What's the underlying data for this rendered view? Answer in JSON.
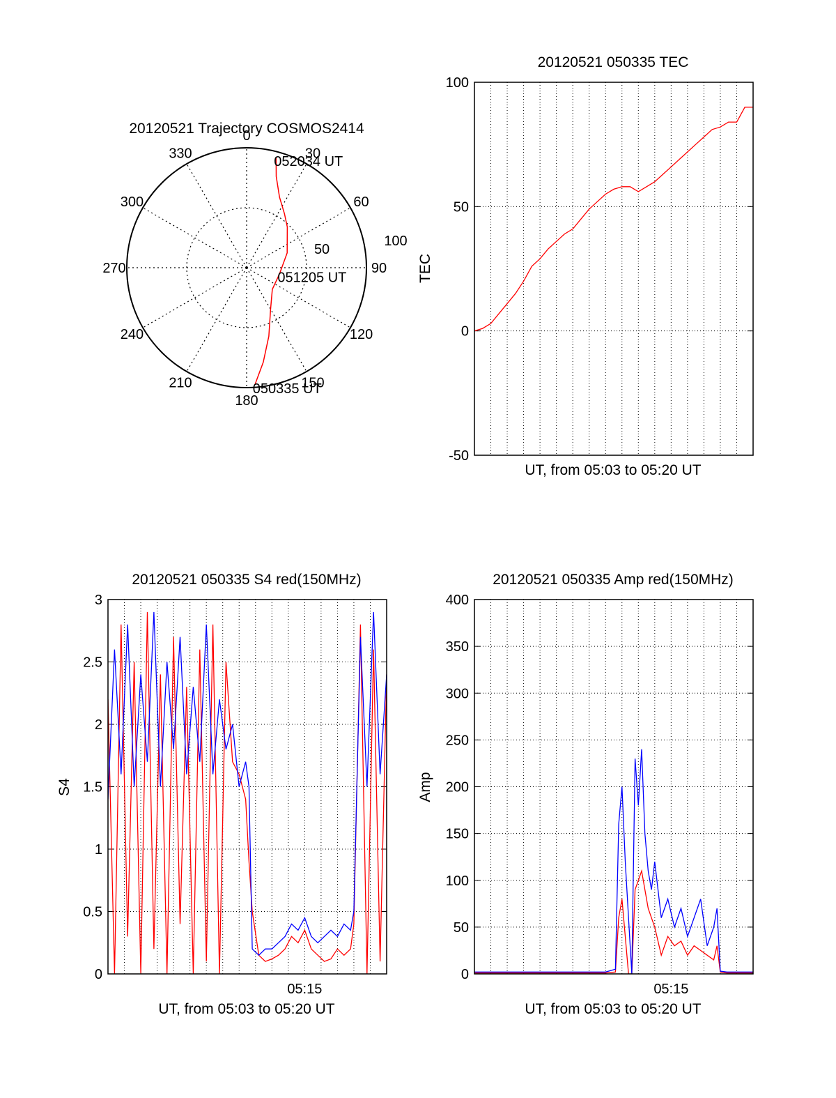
{
  "chart_data": [
    {
      "id": "trajectory",
      "type": "polar",
      "title": "20120521 Trajectory COSMOS2414",
      "angle_ticks": [
        "0",
        "30",
        "60",
        "90",
        "120",
        "150",
        "180",
        "210",
        "240",
        "270",
        "300",
        "330"
      ],
      "radial_range": [
        0,
        100
      ],
      "radial_ticks": [
        "50",
        "100"
      ],
      "grid": true,
      "series": [
        {
          "color": "#ff0000",
          "points": [
            [
              176,
              98
            ],
            [
              170,
              80
            ],
            [
              162,
              60
            ],
            [
              150,
              40
            ],
            [
              130,
              28
            ],
            [
              100,
              28
            ],
            [
              70,
              36
            ],
            [
              45,
              48
            ],
            [
              35,
              55
            ],
            [
              25,
              65
            ],
            [
              18,
              80
            ],
            [
              15,
              95
            ]
          ]
        }
      ],
      "annotations": [
        {
          "text": "052034 UT",
          "angle": 15,
          "radius": 95
        },
        {
          "text": "051205 UT",
          "angle": 100,
          "radius": 28
        },
        {
          "text": "050335 UT",
          "angle": 176,
          "radius": 98
        }
      ]
    },
    {
      "id": "tec",
      "type": "line",
      "title": "20120521 050335 TEC",
      "xlabel": "UT, from 05:03 to 05:20 UT",
      "ylabel": "TEC",
      "xlim": [
        0,
        17
      ],
      "ylim": [
        -50,
        100
      ],
      "yticks": [
        -50,
        0,
        50,
        100
      ],
      "grid": true,
      "series": [
        {
          "color": "#ff0000",
          "x": [
            0,
            0.5,
            1.0,
            1.5,
            2.0,
            2.5,
            3.0,
            3.5,
            4.0,
            4.5,
            5.0,
            5.5,
            6.0,
            6.5,
            7.0,
            7.5,
            8.0,
            8.5,
            9.0,
            9.5,
            10.0,
            10.5,
            11.0,
            11.5,
            12.0,
            12.5,
            13.0,
            13.5,
            14.0,
            14.5,
            15.0,
            15.5,
            16.0,
            16.5,
            17.0
          ],
          "y": [
            0,
            1,
            3,
            7,
            11,
            15,
            20,
            26,
            29,
            33,
            36,
            39,
            41,
            45,
            49,
            52,
            55,
            57,
            58,
            58,
            56,
            58,
            60,
            63,
            66,
            69,
            72,
            75,
            78,
            81,
            82,
            84,
            84,
            90,
            90
          ]
        }
      ]
    },
    {
      "id": "s4",
      "type": "line",
      "title": "20120521 050335 S4 red(150MHz)",
      "xlabel": "UT, from 05:03 to 05:20 UT",
      "ylabel": "S4",
      "xlim": [
        0,
        17
      ],
      "ylim": [
        0,
        3
      ],
      "yticks": [
        0,
        0.5,
        1,
        1.5,
        2,
        2.5,
        3
      ],
      "xtick_labels": [
        {
          "x": 12,
          "label": "05:15"
        }
      ],
      "grid": true,
      "series": [
        {
          "name": "red",
          "color": "#ff0000",
          "x": [
            0,
            0.4,
            0.8,
            1.2,
            1.6,
            2.0,
            2.4,
            2.8,
            3.2,
            3.6,
            4.0,
            4.4,
            4.8,
            5.2,
            5.6,
            6.0,
            6.4,
            6.8,
            7.2,
            7.6,
            8.0,
            8.4,
            8.6,
            8.8,
            9.2,
            9.6,
            10.0,
            10.4,
            10.8,
            11.2,
            11.6,
            12.0,
            12.4,
            12.8,
            13.2,
            13.6,
            14.0,
            14.4,
            14.8,
            15.0,
            15.4,
            15.8,
            16.2,
            16.6,
            17.0
          ],
          "y": [
            2.2,
            0.0,
            2.8,
            0.3,
            2.5,
            0.0,
            2.9,
            0.2,
            2.4,
            0.0,
            2.7,
            0.4,
            2.3,
            0.0,
            2.6,
            0.1,
            2.8,
            0.0,
            2.5,
            1.7,
            1.6,
            1.4,
            0.9,
            0.5,
            0.15,
            0.1,
            0.12,
            0.15,
            0.2,
            0.3,
            0.25,
            0.35,
            0.2,
            0.15,
            0.1,
            0.12,
            0.2,
            0.15,
            0.2,
            0.4,
            2.8,
            0.0,
            2.6,
            0.1,
            2.4
          ]
        },
        {
          "name": "blue",
          "color": "#0000ff",
          "x": [
            0,
            0.4,
            0.8,
            1.2,
            1.6,
            2.0,
            2.4,
            2.8,
            3.2,
            3.6,
            4.0,
            4.4,
            4.8,
            5.2,
            5.6,
            6.0,
            6.4,
            6.8,
            7.2,
            7.6,
            8.0,
            8.4,
            8.6,
            8.8,
            9.2,
            9.6,
            10.0,
            10.4,
            10.8,
            11.2,
            11.6,
            12.0,
            12.4,
            12.8,
            13.2,
            13.6,
            14.0,
            14.4,
            14.8,
            15.0,
            15.4,
            15.8,
            16.2,
            16.6,
            17.0
          ],
          "y": [
            1.4,
            2.6,
            1.6,
            2.8,
            1.5,
            2.4,
            1.7,
            2.9,
            1.5,
            2.5,
            1.8,
            2.7,
            1.6,
            2.3,
            1.7,
            2.8,
            1.6,
            2.2,
            1.8,
            2.0,
            1.5,
            1.7,
            1.5,
            0.2,
            0.15,
            0.2,
            0.2,
            0.25,
            0.3,
            0.4,
            0.35,
            0.45,
            0.3,
            0.25,
            0.3,
            0.35,
            0.3,
            0.4,
            0.35,
            0.5,
            2.7,
            1.5,
            2.9,
            1.6,
            2.4
          ]
        }
      ]
    },
    {
      "id": "amp",
      "type": "line",
      "title": "20120521 050335 Amp red(150MHz)",
      "xlabel": "UT, from 05:03 to 05:20 UT",
      "ylabel": "Amp",
      "xlim": [
        0,
        17
      ],
      "ylim": [
        0,
        400
      ],
      "yticks": [
        0,
        50,
        100,
        150,
        200,
        250,
        300,
        350,
        400
      ],
      "xtick_labels": [
        {
          "x": 12,
          "label": "05:15"
        }
      ],
      "grid": true,
      "series": [
        {
          "name": "red",
          "color": "#ff0000",
          "x": [
            0,
            2,
            4,
            6,
            8,
            8.6,
            8.8,
            9.0,
            9.4,
            9.6,
            9.8,
            10.2,
            10.6,
            11.0,
            11.4,
            11.8,
            12.2,
            12.6,
            13.0,
            13.4,
            13.8,
            14.2,
            14.6,
            14.8,
            15.0,
            15.4,
            16,
            17
          ],
          "y": [
            1,
            1,
            1,
            1,
            1,
            2,
            60,
            80,
            0,
            0,
            90,
            110,
            70,
            50,
            20,
            40,
            30,
            35,
            20,
            30,
            25,
            20,
            15,
            30,
            2,
            1,
            1,
            1
          ]
        },
        {
          "name": "blue",
          "color": "#0000ff",
          "x": [
            0,
            2,
            4,
            6,
            8,
            8.6,
            8.8,
            9.0,
            9.2,
            9.4,
            9.6,
            9.8,
            10.0,
            10.2,
            10.4,
            10.6,
            10.8,
            11.0,
            11.4,
            11.8,
            12.2,
            12.6,
            13.0,
            13.4,
            13.8,
            14.2,
            14.6,
            14.8,
            15.0,
            15.4,
            16,
            17
          ],
          "y": [
            2,
            2,
            2,
            2,
            2,
            5,
            160,
            200,
            120,
            60,
            0,
            230,
            180,
            240,
            150,
            110,
            90,
            120,
            60,
            80,
            50,
            70,
            40,
            60,
            80,
            30,
            50,
            70,
            3,
            2,
            2,
            2
          ]
        }
      ]
    }
  ]
}
